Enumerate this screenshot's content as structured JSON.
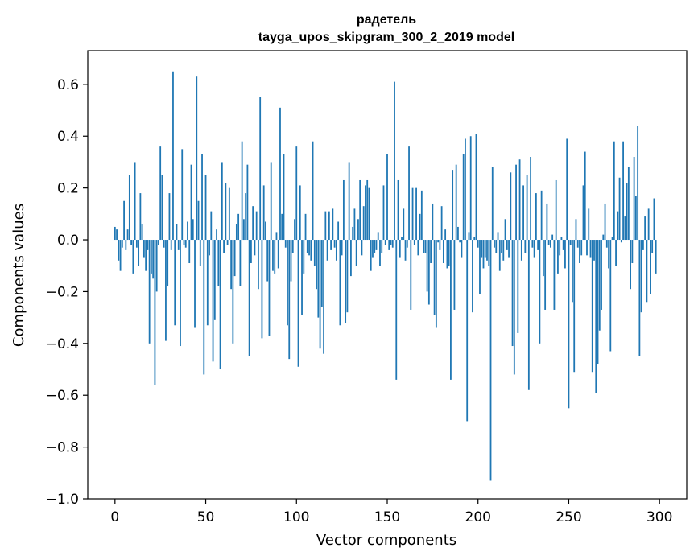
{
  "chart_data": {
    "type": "bar",
    "title": "радетель",
    "subtitle": "tayga_upos_skipgram_300_2_2019 model",
    "xlabel": "Vector components",
    "ylabel": "Components values",
    "xlim": [
      -15,
      315
    ],
    "ylim": [
      -1.0,
      0.73
    ],
    "grid": false,
    "bar_color": "#1f77b4",
    "x_ticks": [
      0,
      50,
      100,
      150,
      200,
      250,
      300
    ],
    "x_tick_labels": [
      "0",
      "50",
      "100",
      "150",
      "200",
      "250",
      "300"
    ],
    "y_ticks": [
      0.6,
      0.4,
      0.2,
      0.0,
      -0.2,
      -0.4,
      -0.6,
      -0.8,
      -1.0
    ],
    "y_tick_labels": [
      "0.6",
      "0.4",
      "0.2",
      "0.0",
      "−0.2",
      "−0.4",
      "−0.6",
      "−0.8",
      "−1.0"
    ],
    "values": [
      0.05,
      0.04,
      -0.08,
      -0.12,
      -0.03,
      0.15,
      -0.04,
      0.04,
      0.25,
      -0.02,
      -0.13,
      0.3,
      -0.03,
      -0.1,
      0.18,
      0.06,
      -0.07,
      -0.12,
      -0.04,
      -0.4,
      -0.13,
      -0.15,
      -0.56,
      -0.2,
      -0.02,
      0.36,
      0.25,
      -0.03,
      -0.39,
      -0.18,
      0.18,
      -0.04,
      0.65,
      -0.33,
      0.06,
      -0.04,
      -0.41,
      0.35,
      -0.02,
      -0.03,
      0.07,
      -0.09,
      0.29,
      0.08,
      -0.34,
      0.63,
      0.15,
      -0.1,
      0.33,
      -0.52,
      0.25,
      -0.33,
      -0.06,
      0.11,
      -0.47,
      -0.31,
      0.04,
      -0.18,
      -0.5,
      0.3,
      -0.05,
      0.22,
      -0.02,
      0.2,
      -0.19,
      -0.4,
      -0.14,
      0.06,
      0.1,
      -0.18,
      0.38,
      0.08,
      0.18,
      0.29,
      -0.45,
      -0.09,
      0.13,
      -0.06,
      0.11,
      -0.19,
      0.55,
      -0.38,
      0.21,
      0.07,
      -0.16,
      -0.37,
      0.3,
      -0.12,
      -0.13,
      0.03,
      -0.11,
      0.51,
      0.1,
      0.33,
      -0.03,
      -0.33,
      -0.46,
      -0.16,
      -0.05,
      0.08,
      0.36,
      -0.49,
      0.21,
      -0.29,
      -0.13,
      0.1,
      -0.05,
      -0.06,
      -0.08,
      0.38,
      -0.1,
      -0.19,
      -0.3,
      -0.42,
      -0.26,
      -0.44,
      0.11,
      -0.08,
      0.11,
      -0.04,
      0.12,
      -0.03,
      -0.08,
      0.07,
      -0.33,
      -0.06,
      0.23,
      -0.32,
      -0.28,
      0.3,
      -0.14,
      0.05,
      0.12,
      -0.1,
      0.08,
      0.23,
      -0.06,
      0.13,
      0.21,
      0.23,
      0.2,
      -0.12,
      -0.07,
      -0.05,
      -0.04,
      0.03,
      -0.1,
      -0.05,
      0.21,
      -0.02,
      0.33,
      -0.04,
      -0.02,
      -0.03,
      0.61,
      -0.54,
      0.23,
      -0.07,
      0.01,
      0.12,
      -0.08,
      -0.03,
      0.36,
      -0.27,
      0.2,
      -0.02,
      0.2,
      -0.06,
      0.1,
      0.19,
      -0.05,
      -0.05,
      -0.2,
      -0.25,
      -0.09,
      0.14,
      -0.29,
      -0.34,
      -0.01,
      -0.04,
      0.13,
      -0.09,
      0.04,
      -0.11,
      -0.1,
      -0.54,
      0.27,
      -0.27,
      0.29,
      0.05,
      -0.01,
      -0.07,
      0.33,
      0.39,
      -0.7,
      0.03,
      0.4,
      -0.28,
      0.01,
      0.41,
      -0.03,
      -0.21,
      -0.07,
      -0.11,
      -0.07,
      -0.08,
      -0.1,
      -0.93,
      0.28,
      -0.03,
      -0.05,
      0.03,
      -0.12,
      -0.05,
      -0.08,
      0.08,
      -0.04,
      -0.07,
      0.26,
      -0.41,
      -0.52,
      0.29,
      -0.36,
      0.31,
      -0.08,
      0.21,
      -0.05,
      0.25,
      -0.58,
      0.32,
      -0.03,
      -0.07,
      0.18,
      -0.04,
      -0.4,
      0.19,
      -0.14,
      -0.27,
      0.14,
      -0.02,
      -0.03,
      0.02,
      -0.27,
      0.23,
      -0.13,
      -0.06,
      0.01,
      -0.04,
      -0.11,
      0.39,
      -0.65,
      -0.02,
      -0.24,
      -0.51,
      0.08,
      -0.03,
      -0.09,
      -0.06,
      0.21,
      0.34,
      -0.06,
      0.12,
      -0.07,
      -0.51,
      -0.08,
      -0.59,
      -0.48,
      -0.35,
      -0.27,
      0.02,
      0.14,
      -0.03,
      -0.11,
      -0.43,
      0.01,
      0.38,
      -0.1,
      0.11,
      0.24,
      -0.01,
      0.38,
      0.09,
      0.22,
      0.28,
      -0.19,
      -0.09,
      0.32,
      0.17,
      0.44,
      -0.45,
      -0.28,
      -0.04,
      0.09,
      -0.24,
      0.12,
      -0.21,
      -0.05,
      0.16,
      -0.13
    ]
  }
}
